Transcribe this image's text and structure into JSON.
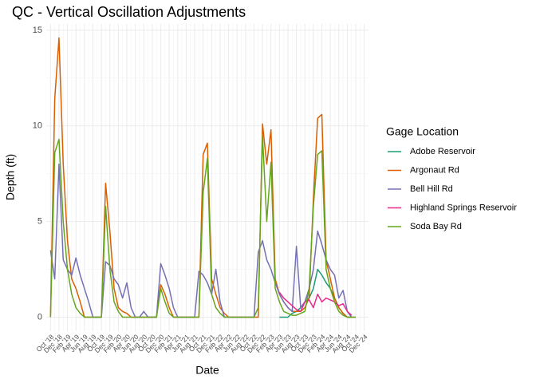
{
  "chart_data": {
    "type": "line",
    "title": "QC - Vertical Oscillation Adjustments",
    "x_label": "Date",
    "y_label": "Depth (ft)",
    "legend_title": "Gage Location",
    "legend_position": "right",
    "grid": true,
    "x": [
      "2018-10",
      "2018-11",
      "2018-12",
      "2019-01",
      "2019-02",
      "2019-03",
      "2019-04",
      "2019-05",
      "2019-06",
      "2019-07",
      "2019-08",
      "2019-09",
      "2019-10",
      "2019-11",
      "2019-12",
      "2020-01",
      "2020-02",
      "2020-03",
      "2020-04",
      "2020-05",
      "2020-06",
      "2020-07",
      "2020-08",
      "2020-09",
      "2020-10",
      "2020-11",
      "2020-12",
      "2021-01",
      "2021-02",
      "2021-03",
      "2021-04",
      "2021-05",
      "2021-06",
      "2021-07",
      "2021-08",
      "2021-09",
      "2021-10",
      "2021-11",
      "2021-12",
      "2022-01",
      "2022-02",
      "2022-03",
      "2022-04",
      "2022-05",
      "2022-06",
      "2022-07",
      "2022-08",
      "2022-09",
      "2022-10",
      "2022-11",
      "2022-12",
      "2023-01",
      "2023-02",
      "2023-03",
      "2023-04",
      "2023-05",
      "2023-06",
      "2023-07",
      "2023-08",
      "2023-09",
      "2023-10",
      "2023-11",
      "2023-12",
      "2024-01",
      "2024-02",
      "2024-03",
      "2024-04",
      "2024-05",
      "2024-06",
      "2024-07",
      "2024-08",
      "2024-09",
      "2024-10"
    ],
    "xlim": [
      "2018-09",
      "2025-01"
    ],
    "xticks": [
      {
        "value": "2018-10",
        "label": "Oct '18"
      },
      {
        "value": "2018-12",
        "label": "Dec '18"
      },
      {
        "value": "2019-02",
        "label": "Feb '19"
      },
      {
        "value": "2019-04",
        "label": "Apr '19"
      },
      {
        "value": "2019-06",
        "label": "Jun '19"
      },
      {
        "value": "2019-08",
        "label": "Aug '19"
      },
      {
        "value": "2019-10",
        "label": "Oct '19"
      },
      {
        "value": "2019-12",
        "label": "Dec '19"
      },
      {
        "value": "2020-02",
        "label": "Feb '20"
      },
      {
        "value": "2020-04",
        "label": "Apr '20"
      },
      {
        "value": "2020-06",
        "label": "Jun '20"
      },
      {
        "value": "2020-08",
        "label": "Aug '20"
      },
      {
        "value": "2020-10",
        "label": "Oct '20"
      },
      {
        "value": "2020-12",
        "label": "Dec '20"
      },
      {
        "value": "2021-02",
        "label": "Feb '21"
      },
      {
        "value": "2021-04",
        "label": "Apr '21"
      },
      {
        "value": "2021-06",
        "label": "Jun '21"
      },
      {
        "value": "2021-08",
        "label": "Aug '21"
      },
      {
        "value": "2021-10",
        "label": "Oct '21"
      },
      {
        "value": "2021-12",
        "label": "Dec '21"
      },
      {
        "value": "2022-02",
        "label": "Feb '22"
      },
      {
        "value": "2022-04",
        "label": "Apr '22"
      },
      {
        "value": "2022-06",
        "label": "Jun '22"
      },
      {
        "value": "2022-08",
        "label": "Aug '22"
      },
      {
        "value": "2022-10",
        "label": "Oct '22"
      },
      {
        "value": "2022-12",
        "label": "Dec '22"
      },
      {
        "value": "2023-02",
        "label": "Feb '23"
      },
      {
        "value": "2023-04",
        "label": "Apr '23"
      },
      {
        "value": "2023-06",
        "label": "Jun '23"
      },
      {
        "value": "2023-08",
        "label": "Aug '23"
      },
      {
        "value": "2023-10",
        "label": "Oct '23"
      },
      {
        "value": "2023-12",
        "label": "Dec '23"
      },
      {
        "value": "2024-02",
        "label": "Feb '24"
      },
      {
        "value": "2024-04",
        "label": "Apr '24"
      },
      {
        "value": "2024-06",
        "label": "Jun '24"
      },
      {
        "value": "2024-08",
        "label": "Aug '24"
      },
      {
        "value": "2024-10",
        "label": "Oct '24"
      },
      {
        "value": "2024-12",
        "label": "Dec '24"
      }
    ],
    "ylim": [
      -0.73,
      15.33
    ],
    "yticks": [
      0,
      5,
      10,
      15
    ],
    "series": [
      {
        "name": "Adobe Reservoir",
        "color": "#1b9e77",
        "values": [
          null,
          null,
          null,
          null,
          null,
          null,
          null,
          null,
          null,
          null,
          null,
          null,
          null,
          null,
          null,
          null,
          null,
          null,
          null,
          null,
          null,
          null,
          null,
          null,
          null,
          null,
          null,
          null,
          null,
          null,
          null,
          null,
          null,
          null,
          null,
          null,
          null,
          null,
          null,
          null,
          null,
          null,
          null,
          null,
          null,
          null,
          null,
          null,
          null,
          null,
          null,
          null,
          null,
          null,
          0,
          0,
          0,
          0.2,
          0.3,
          0.5,
          0.8,
          1,
          1.5,
          2.5,
          2.2,
          1.8,
          1.5,
          1,
          0.5,
          0.2,
          0,
          0,
          null
        ]
      },
      {
        "name": "Argonaut Rd",
        "color": "#d95f02",
        "values": [
          0,
          11.4,
          14.6,
          8,
          4,
          2,
          1.5,
          0.8,
          0,
          0,
          0,
          0,
          0,
          7,
          4.5,
          1.5,
          0.5,
          0.3,
          0.2,
          0,
          0,
          0,
          0,
          0,
          0,
          0,
          1.7,
          1.2,
          0.5,
          0,
          0,
          0,
          0,
          0,
          0,
          0,
          8.5,
          9.1,
          2,
          1.2,
          0.5,
          0.2,
          0,
          0,
          0,
          0,
          0,
          0,
          0,
          0,
          10.1,
          8,
          9.8,
          2,
          1.2,
          0.8,
          0.5,
          0.3,
          0.3,
          0.3,
          0.5,
          1,
          6.2,
          10.4,
          10.6,
          3,
          2,
          1,
          0.5,
          0.2,
          0,
          0,
          0
        ]
      },
      {
        "name": "Bell Hill Rd",
        "color": "#7570b3",
        "values": [
          3.5,
          2,
          8,
          3,
          2.5,
          2.2,
          3.1,
          2.2,
          1.5,
          0.8,
          0,
          0,
          0,
          2.9,
          2.7,
          2,
          1.7,
          1,
          1.8,
          0.5,
          0,
          0,
          0.3,
          0,
          0,
          0,
          2.8,
          2.2,
          1.5,
          0.5,
          0,
          0,
          0,
          0,
          0,
          2.4,
          2.2,
          1.8,
          1.2,
          2.5,
          0.8,
          0,
          0,
          0,
          0,
          0,
          0,
          0,
          0,
          3.4,
          4,
          3,
          2.5,
          1.8,
          1.2,
          0.8,
          0.5,
          0.3,
          3.7,
          0.5,
          0.8,
          1.5,
          2.5,
          4.5,
          3.8,
          3,
          2.5,
          2.2,
          1,
          1.4,
          0.3,
          0,
          null
        ]
      },
      {
        "name": "Highland Springs Reservoir",
        "color": "#e7298a",
        "values": [
          null,
          null,
          null,
          null,
          null,
          null,
          null,
          null,
          null,
          null,
          null,
          null,
          null,
          null,
          null,
          null,
          null,
          null,
          null,
          null,
          null,
          null,
          null,
          null,
          null,
          null,
          null,
          null,
          null,
          null,
          null,
          null,
          null,
          null,
          null,
          null,
          null,
          null,
          null,
          null,
          null,
          null,
          null,
          null,
          null,
          null,
          null,
          null,
          null,
          null,
          null,
          null,
          null,
          null,
          1.3,
          1,
          0.8,
          0.6,
          0.4,
          0.3,
          0.8,
          0.9,
          0.5,
          1.2,
          0.8,
          1,
          0.9,
          0.8,
          0.6,
          0.7,
          0.3,
          0.1,
          null
        ]
      },
      {
        "name": "Soda Bay Rd",
        "color": "#66a61e",
        "values": [
          0,
          8.6,
          9.3,
          5,
          2.5,
          1.2,
          0.5,
          0.2,
          0,
          0,
          0,
          0,
          0,
          5.8,
          2.5,
          0.8,
          0.3,
          0,
          0,
          0,
          0,
          0,
          0,
          0,
          0,
          0,
          1.5,
          0.8,
          0.2,
          0,
          0,
          0,
          0,
          0,
          0,
          0,
          6.5,
          8.3,
          1.2,
          0.5,
          0.2,
          0,
          0,
          0,
          0,
          0,
          0,
          0,
          0,
          0.5,
          9.5,
          5,
          8.1,
          1.5,
          0.8,
          0.3,
          0.2,
          0.1,
          0.1,
          0.2,
          0.3,
          1.5,
          5.8,
          8.5,
          8.7,
          2.5,
          1.5,
          0.8,
          0.3,
          0.1,
          0,
          0,
          0
        ]
      }
    ]
  }
}
